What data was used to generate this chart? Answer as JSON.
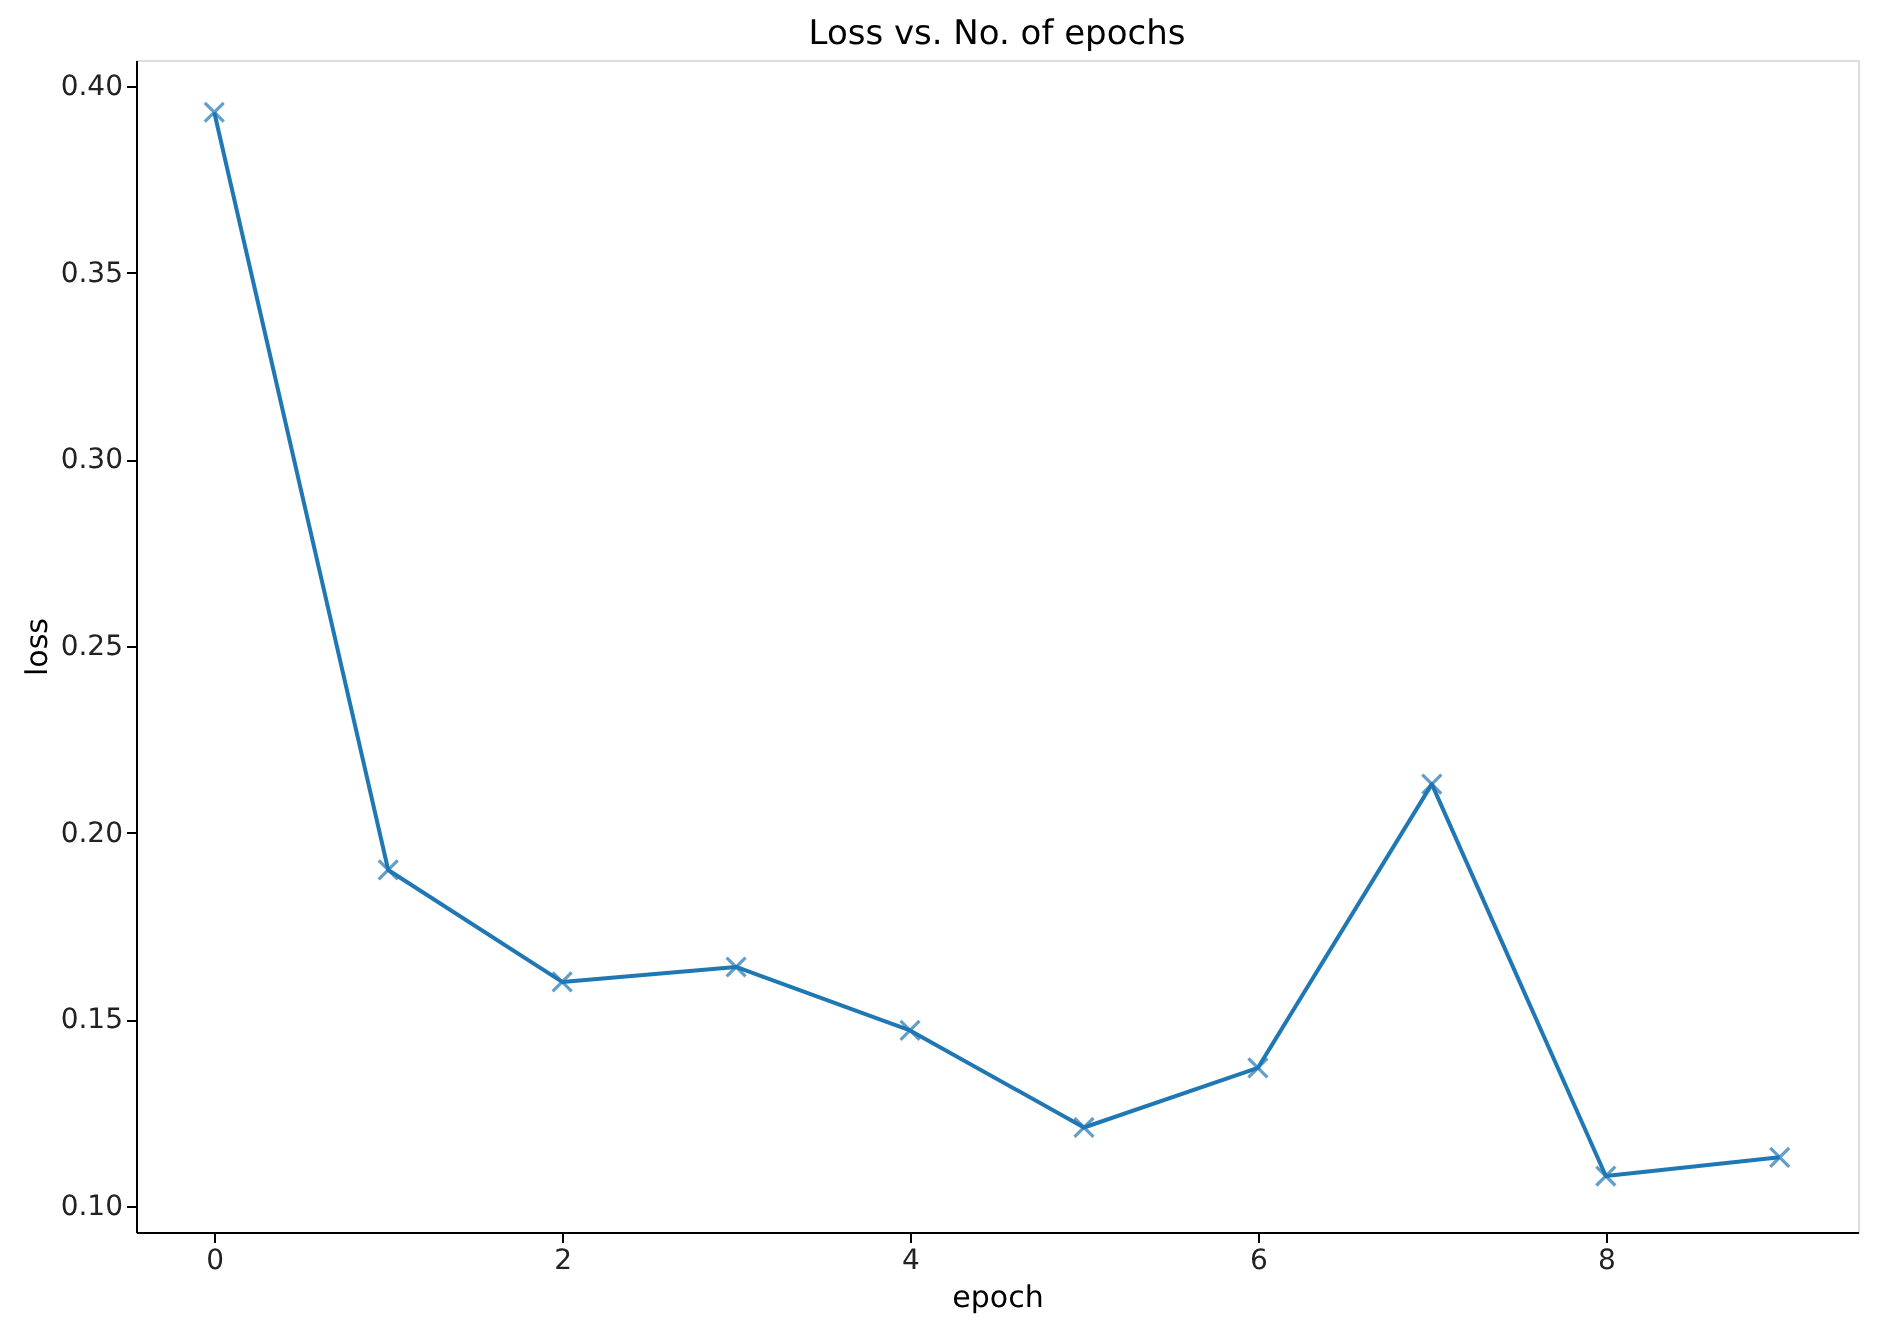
{
  "chart_data": {
    "type": "line",
    "title": "Loss vs. No. of epochs",
    "xlabel": "epoch",
    "ylabel": "loss",
    "x": [
      0,
      1,
      2,
      3,
      4,
      5,
      6,
      7,
      8,
      9
    ],
    "series": [
      {
        "color": "#1f77b4",
        "values": [
          0.393,
          0.19,
          0.16,
          0.164,
          0.147,
          0.121,
          0.137,
          0.213,
          0.108,
          0.113
        ]
      }
    ],
    "xlim": [
      -0.45,
      9.45
    ],
    "ylim": [
      0.093,
      0.407
    ],
    "xticks": [
      0,
      2,
      4,
      6,
      8
    ],
    "yticks": [
      {
        "value": 0.1,
        "label": "0.10"
      },
      0.15,
      {
        "value": 0.2,
        "label": "0.20"
      },
      0.25,
      {
        "value": 0.3,
        "label": "0.30"
      },
      0.35,
      {
        "value": 0.4,
        "label": "0.40"
      }
    ],
    "marker": "cross",
    "line_style": "solid",
    "grid": false,
    "legend": false
  }
}
